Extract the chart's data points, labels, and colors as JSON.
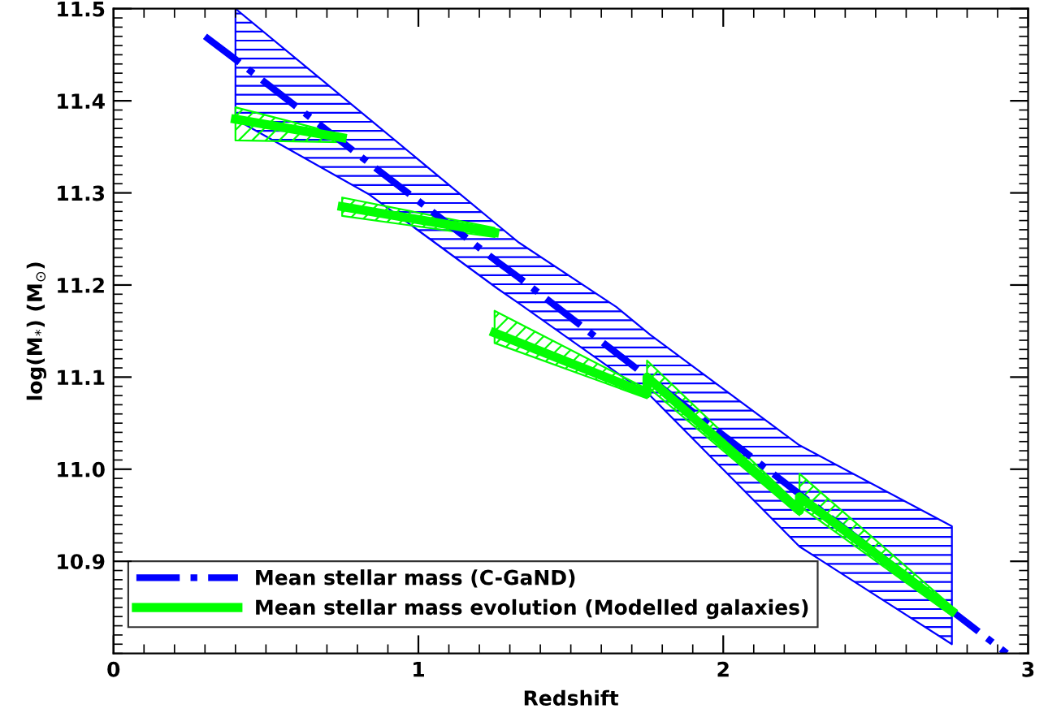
{
  "chart_data": {
    "type": "line",
    "xlabel": "Redshift",
    "ylabel": "log(M$_{*}$) (M$_{⊙}$)",
    "xlim": [
      0,
      3
    ],
    "xticks": [
      0,
      1,
      2,
      3
    ],
    "ylim": [
      10.8,
      11.5
    ],
    "yticks": [
      10.9,
      {
        "value": 11.0,
        "label": "11.0"
      },
      11.1,
      11.2,
      11.3,
      11.4,
      11.5
    ],
    "grid": false,
    "legend": "bottom left",
    "marker": "none",
    "series": [
      {
        "name": "Mean stellar mass (C-GaND)",
        "color": "#0000ff",
        "line_style": "dashdot",
        "x": [
          0.3,
          0.4,
          0.84,
          1.26,
          1.33,
          1.65,
          1.76,
          2.25,
          2.75,
          2.93
        ],
        "values": [
          11.47,
          11.445,
          11.332,
          11.225,
          11.208,
          11.126,
          11.098,
          10.973,
          10.846,
          10.8
        ],
        "lower": [
          null,
          11.38,
          11.298,
          11.196,
          11.18,
          11.105,
          11.08,
          10.916,
          10.81,
          null
        ],
        "upper": [
          null,
          11.5,
          11.38,
          11.265,
          11.246,
          11.176,
          11.146,
          11.026,
          10.938,
          null
        ]
      },
      {
        "name": "Mean stellar mass evolution (Modelled galaxies)",
        "color": "#00ff00",
        "line_style": "solid",
        "x": [
          0.4,
          0.75
        ],
        "values": [
          11.38,
          11.36
        ],
        "lower": [
          11.357,
          11.355
        ],
        "upper": [
          11.393,
          11.363
        ]
      },
      {
        "color": "#02fe02",
        "line_style": "solid",
        "x": [
          0.75,
          1.25
        ],
        "values": [
          11.285,
          11.257
        ],
        "lower": [
          11.275,
          11.252
        ],
        "upper": [
          11.295,
          11.262
        ]
      },
      {
        "color": "#04fc04",
        "line_style": "solid",
        "x": [
          1.25,
          1.75,
          1.75,
          2.25,
          2.25,
          2.75
        ],
        "values": [
          11.148,
          11.082,
          11.1,
          10.955,
          10.97,
          10.846
        ],
        "lower": [
          11.137,
          11.077,
          11.09,
          10.95,
          10.96,
          10.841
        ],
        "upper": [
          11.172,
          11.087,
          11.118,
          10.96,
          10.995,
          10.851
        ]
      }
    ]
  }
}
